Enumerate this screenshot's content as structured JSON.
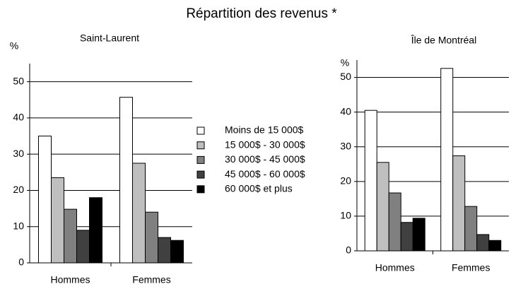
{
  "title": "Répartition des revenus *",
  "chart_data": [
    {
      "type": "bar",
      "title": "Saint-Laurent",
      "ylabel": "%",
      "categories": [
        "Hommes",
        "Femmes"
      ],
      "series": [
        {
          "name": "Moins de 15 000$",
          "color": "#ffffff",
          "values": [
            35,
            45.7
          ]
        },
        {
          "name": "15 000$ - 30 000$",
          "color": "#bfbfbf",
          "values": [
            23.5,
            27.5
          ]
        },
        {
          "name": "30 000$ - 45 000$",
          "color": "#808080",
          "values": [
            14.8,
            14
          ]
        },
        {
          "name": "45 000$ - 60 000$",
          "color": "#404040",
          "values": [
            9,
            7
          ]
        },
        {
          "name": "60 000$ et plus",
          "color": "#000000",
          "values": [
            18,
            6.2
          ]
        }
      ],
      "ylim": [
        0,
        55
      ],
      "yticks": [
        0,
        10,
        20,
        30,
        40,
        50
      ],
      "grid": true
    },
    {
      "type": "bar",
      "title": "Île de Montréal",
      "ylabel": "%",
      "categories": [
        "Hommes",
        "Femmes"
      ],
      "series": [
        {
          "values": [
            40.5,
            52.6
          ]
        },
        {
          "values": [
            25.5,
            27.4
          ]
        },
        {
          "values": [
            16.7,
            12.8
          ]
        },
        {
          "values": [
            8.2,
            4.7
          ]
        },
        {
          "values": [
            9.4,
            3
          ]
        }
      ],
      "ylim": [
        0,
        55
      ],
      "yticks": [
        0,
        10,
        20,
        30,
        40,
        50
      ],
      "grid": true
    }
  ]
}
